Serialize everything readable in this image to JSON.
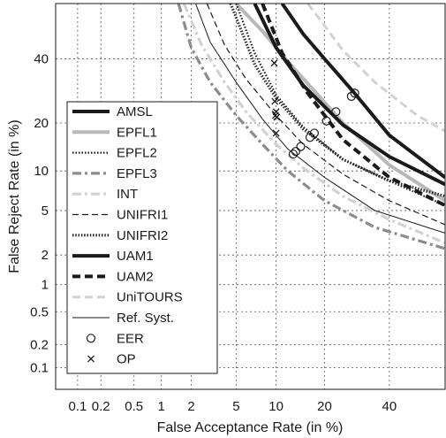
{
  "chart_data": {
    "type": "line",
    "title": "",
    "xlabel": "False Acceptance Rate (in %)",
    "ylabel": "False Reject Rate (in %)",
    "xscale": "probit",
    "yscale": "probit",
    "xlim": [
      0.05,
      60
    ],
    "ylim": [
      0.05,
      60
    ],
    "xticks": [
      0.1,
      0.2,
      0.5,
      1,
      2,
      5,
      10,
      20,
      40
    ],
    "xtick_labels": [
      "0.1",
      "0.2",
      "0.5",
      "1",
      "2",
      "5",
      "10",
      "20",
      "40"
    ],
    "yticks": [
      0.1,
      0.2,
      0.5,
      1,
      2,
      5,
      10,
      20,
      40
    ],
    "ytick_labels": [
      "0.1",
      "0.2",
      "0.5",
      "1",
      "2",
      "5",
      "10",
      "20",
      "40"
    ],
    "grid": true,
    "legend_position": "left",
    "series": [
      {
        "name": "AMSL",
        "style": "solid-thick",
        "color": "#1a1a1a",
        "x": [
          11,
          15,
          20,
          28,
          40,
          60
        ],
        "y": [
          60,
          49,
          40,
          29,
          17,
          9
        ]
      },
      {
        "name": "EPFL1",
        "style": "solid-thick",
        "color": "#b8b8b8",
        "x": [
          5,
          8,
          12,
          17,
          25,
          40,
          60
        ],
        "y": [
          60,
          50,
          39,
          30,
          20,
          11,
          6
        ]
      },
      {
        "name": "EPFL2",
        "style": "dotted",
        "color": "#1a1a1a",
        "x": [
          5,
          7,
          10,
          15,
          25,
          40,
          60
        ],
        "y": [
          60,
          42,
          28,
          19,
          12,
          8.5,
          5.5
        ]
      },
      {
        "name": "EPFL3",
        "style": "dashdot",
        "color": "#8c8c8c",
        "x": [
          1.5,
          2,
          3,
          5,
          8,
          12,
          20,
          35,
          60
        ],
        "y": [
          60,
          44,
          32,
          22,
          15,
          10,
          6,
          3.6,
          2.3
        ]
      },
      {
        "name": "INT",
        "style": "dashdot",
        "color": "#d2d2d2",
        "x": [
          1.7,
          2.5,
          4,
          6,
          10,
          15,
          25,
          40,
          60
        ],
        "y": [
          60,
          45,
          32,
          23,
          15,
          10.5,
          6.5,
          4.2,
          2.6
        ]
      },
      {
        "name": "UNIFRI1",
        "style": "dashed-thin",
        "color": "#1a1a1a",
        "x": [
          2.8,
          4,
          6,
          10,
          15,
          25,
          40,
          60
        ],
        "y": [
          60,
          45,
          33,
          22,
          15,
          9.5,
          6,
          3.8
        ]
      },
      {
        "name": "UNIFRI2",
        "style": "dotted-thick",
        "color": "#2b2b2b",
        "x": [
          4.5,
          7,
          10,
          15,
          25,
          40,
          60
        ],
        "y": [
          60,
          38,
          27,
          18.5,
          12,
          8.5,
          6.5
        ]
      },
      {
        "name": "UAM1",
        "style": "solid-thick",
        "color": "#1a1a1a",
        "x": [
          7,
          10,
          15,
          25,
          40,
          60
        ],
        "y": [
          60,
          44,
          31,
          19.5,
          12.5,
          8
        ]
      },
      {
        "name": "UAM2",
        "style": "dashed-thick",
        "color": "#1a1a1a",
        "x": [
          8,
          11,
          16,
          25,
          40,
          60
        ],
        "y": [
          60,
          42,
          28.5,
          16,
          9,
          5.5
        ]
      },
      {
        "name": "UniTOURS",
        "style": "dashed",
        "color": "#d2d2d2",
        "x": [
          16,
          20,
          25,
          35,
          50,
          60
        ],
        "y": [
          60,
          52,
          43,
          32,
          22,
          18
        ]
      },
      {
        "name": "Ref. Syst.",
        "style": "solid-thin",
        "color": "#1a1a1a",
        "x": [
          2.2,
          3,
          5,
          8,
          12,
          20,
          35,
          60
        ],
        "y": [
          60,
          46,
          32,
          21,
          14,
          9,
          5,
          3.2
        ]
      }
    ],
    "eer_points": {
      "name": "EER",
      "marker": "circle",
      "x": [
        13.5,
        13,
        14.5,
        16.5,
        17.5,
        20.5,
        23,
        27.5,
        28.5
      ],
      "y": [
        13.5,
        13,
        14.5,
        16.5,
        17.5,
        20.5,
        23,
        27.5,
        28.5
      ]
    },
    "op_points": {
      "name": "OP",
      "marker": "x",
      "x": [
        9.7,
        9.8,
        10,
        9.9,
        10.1,
        10
      ],
      "y": [
        38.5,
        26,
        23,
        22,
        21.5,
        17.5
      ]
    }
  }
}
